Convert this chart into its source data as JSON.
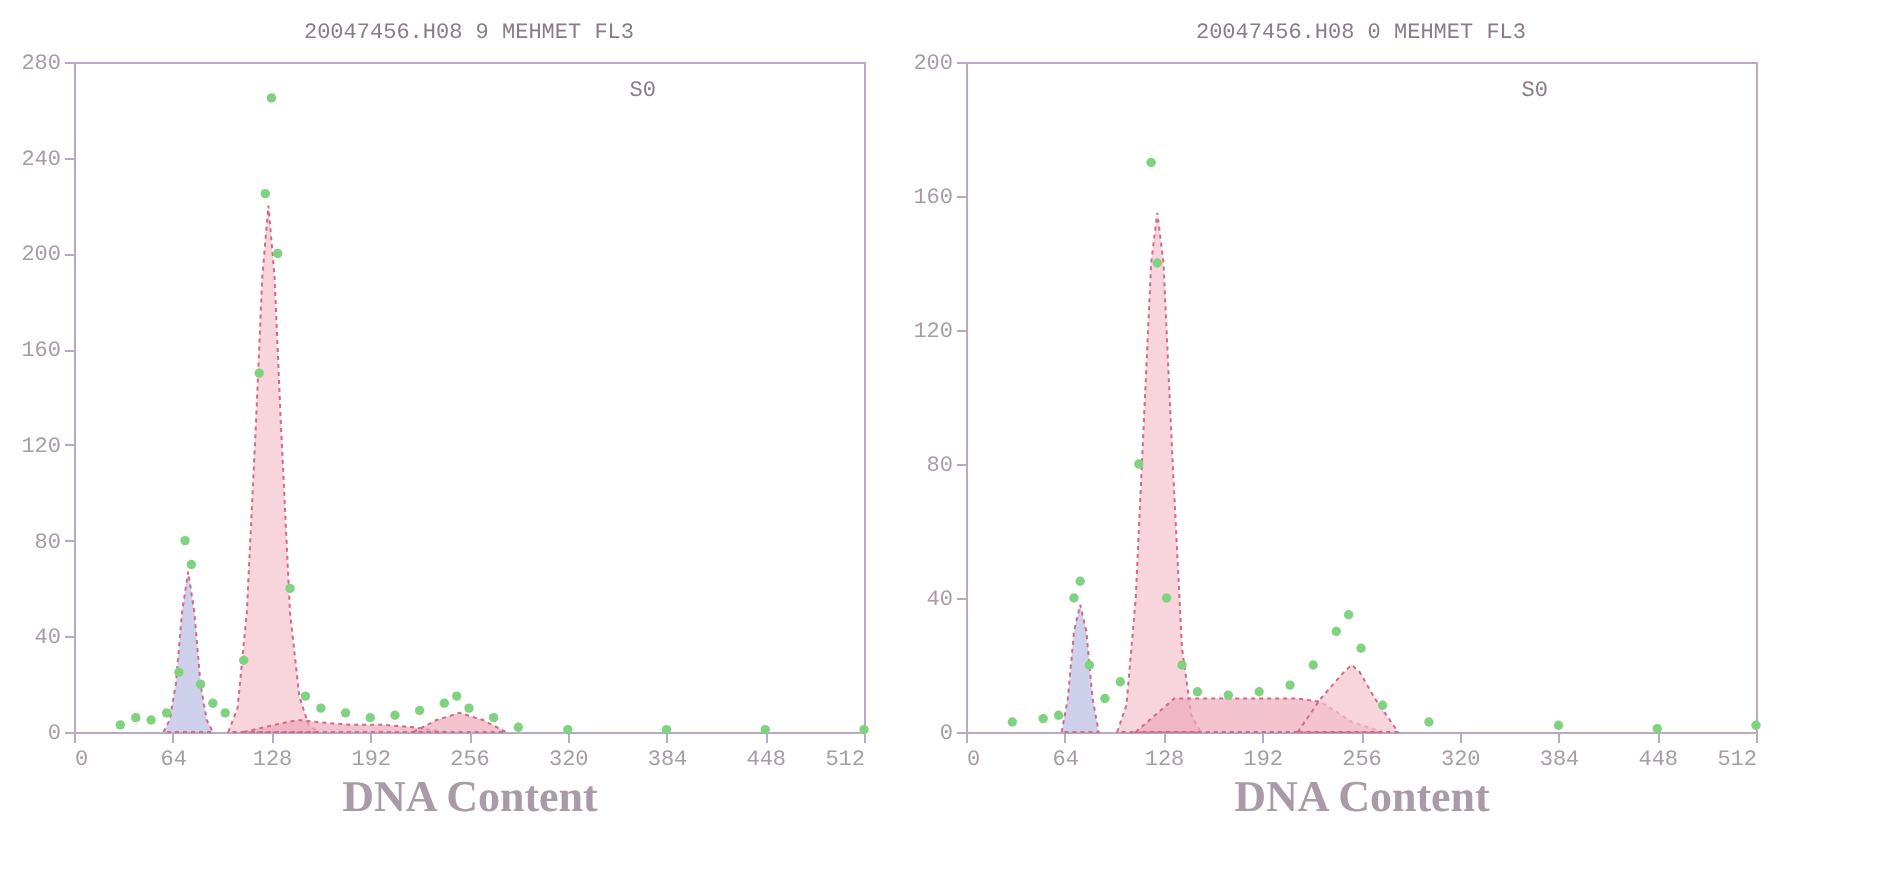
{
  "chart_data": [
    {
      "type": "area",
      "title": "20047456.H08 9 MEHMET FL3",
      "xlabel": "DNA Content",
      "annotations": [
        "S0"
      ],
      "xlim": [
        0,
        512
      ],
      "xticks": [
        0,
        64,
        128,
        192,
        256,
        320,
        384,
        448,
        512
      ],
      "ylim": [
        0,
        280
      ],
      "yticks": [
        0,
        40,
        80,
        120,
        160,
        200,
        240,
        280
      ],
      "series": [
        {
          "type": "area",
          "color": "#b9bde3",
          "x": [
            58,
            62,
            66,
            70,
            74,
            78,
            82,
            86,
            90
          ],
          "values": [
            0,
            5,
            20,
            50,
            67,
            50,
            20,
            5,
            0
          ]
        },
        {
          "type": "area",
          "color": "#f5c2cf",
          "x": [
            100,
            106,
            112,
            118,
            122,
            126,
            130,
            134,
            140,
            146,
            152,
            158
          ],
          "values": [
            0,
            10,
            50,
            130,
            190,
            220,
            190,
            130,
            50,
            15,
            3,
            0
          ]
        },
        {
          "type": "area",
          "color": "#eea9bb",
          "x": [
            110,
            130,
            145,
            160,
            180,
            200,
            220,
            240
          ],
          "values": [
            0,
            3,
            5,
            4,
            3,
            3,
            2,
            0
          ]
        },
        {
          "type": "area",
          "color": "#eea9bb",
          "x": [
            220,
            235,
            250,
            265,
            280
          ],
          "values": [
            0,
            5,
            8,
            5,
            0
          ]
        },
        {
          "type": "scatter",
          "color": "#7fd37f",
          "x": [
            30,
            40,
            50,
            60,
            68,
            72,
            76,
            82,
            90,
            98,
            110,
            120,
            124,
            128,
            132,
            140,
            150,
            160,
            176,
            192,
            208,
            224,
            240,
            248,
            256,
            272,
            288,
            320,
            384,
            448,
            512
          ],
          "values": [
            3,
            6,
            5,
            8,
            25,
            80,
            70,
            20,
            12,
            8,
            30,
            150,
            225,
            265,
            200,
            60,
            15,
            10,
            8,
            6,
            7,
            9,
            12,
            15,
            10,
            6,
            2,
            1,
            1,
            1,
            1
          ]
        }
      ]
    },
    {
      "type": "area",
      "title": "20047456.H08 0 MEHMET FL3",
      "xlabel": "DNA Content",
      "annotations": [
        "S0"
      ],
      "xlim": [
        0,
        512
      ],
      "xticks": [
        0,
        64,
        128,
        192,
        256,
        320,
        384,
        448,
        512
      ],
      "ylim": [
        0,
        200
      ],
      "yticks": [
        0,
        40,
        80,
        120,
        160,
        200
      ],
      "series": [
        {
          "type": "area",
          "color": "#b9bde3",
          "x": [
            62,
            66,
            70,
            74,
            78,
            82,
            86
          ],
          "values": [
            0,
            10,
            30,
            38,
            30,
            10,
            0
          ]
        },
        {
          "type": "area",
          "color": "#f5c2cf",
          "x": [
            98,
            104,
            110,
            116,
            120,
            124,
            128,
            134,
            140,
            146,
            152
          ],
          "values": [
            0,
            8,
            40,
            100,
            140,
            155,
            140,
            80,
            25,
            5,
            0
          ]
        },
        {
          "type": "area",
          "color": "#eea9bb",
          "x": [
            110,
            135,
            150,
            200,
            215,
            230,
            250,
            270
          ],
          "values": [
            0,
            10,
            10,
            10,
            10,
            9,
            3,
            0
          ]
        },
        {
          "type": "area",
          "color": "#f5c2cf",
          "x": [
            215,
            230,
            245,
            250,
            255,
            265,
            280
          ],
          "values": [
            0,
            10,
            18,
            20,
            18,
            10,
            0
          ]
        },
        {
          "type": "scatter",
          "color": "#7fd37f",
          "x": [
            30,
            50,
            60,
            70,
            74,
            80,
            90,
            100,
            112,
            120,
            124,
            130,
            140,
            150,
            170,
            190,
            210,
            225,
            240,
            248,
            256,
            270,
            300,
            384,
            448,
            512
          ],
          "values": [
            3,
            4,
            5,
            40,
            45,
            20,
            10,
            15,
            80,
            170,
            140,
            40,
            20,
            12,
            11,
            12,
            14,
            20,
            30,
            35,
            25,
            8,
            3,
            2,
            1,
            2
          ]
        }
      ]
    }
  ]
}
